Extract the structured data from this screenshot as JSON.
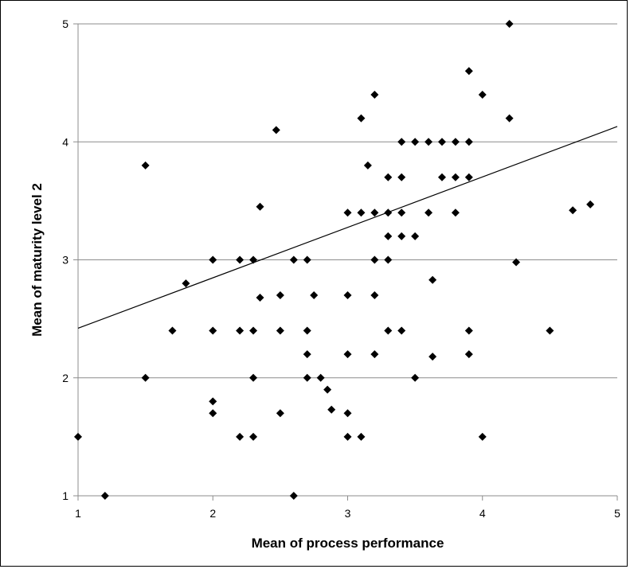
{
  "chart_data": {
    "type": "scatter",
    "xlabel": "Mean of process performance",
    "ylabel": "Mean of maturity level 2",
    "xlim": [
      1,
      5
    ],
    "ylim": [
      1,
      5
    ],
    "xticks": [
      "1",
      "2",
      "3",
      "4",
      "5"
    ],
    "yticks": [
      "1",
      "2",
      "3",
      "4",
      "5"
    ],
    "grid": "horizontal",
    "legend": "none",
    "marker": "diamond",
    "marker_color": "#000000",
    "trendline": {
      "x": [
        1,
        5
      ],
      "y": [
        2.42,
        4.13
      ]
    },
    "points": [
      {
        "x": 1.0,
        "y": 1.5
      },
      {
        "x": 1.2,
        "y": 1.0
      },
      {
        "x": 1.5,
        "y": 3.8
      },
      {
        "x": 1.5,
        "y": 2.0
      },
      {
        "x": 1.7,
        "y": 2.4
      },
      {
        "x": 1.8,
        "y": 2.8
      },
      {
        "x": 2.0,
        "y": 3.0
      },
      {
        "x": 2.0,
        "y": 2.4
      },
      {
        "x": 2.0,
        "y": 1.8
      },
      {
        "x": 2.0,
        "y": 1.7
      },
      {
        "x": 2.2,
        "y": 3.0
      },
      {
        "x": 2.2,
        "y": 2.4
      },
      {
        "x": 2.2,
        "y": 1.5
      },
      {
        "x": 2.3,
        "y": 3.0
      },
      {
        "x": 2.3,
        "y": 2.4
      },
      {
        "x": 2.3,
        "y": 2.0
      },
      {
        "x": 2.3,
        "y": 1.5
      },
      {
        "x": 2.35,
        "y": 3.45
      },
      {
        "x": 2.35,
        "y": 2.68
      },
      {
        "x": 2.47,
        "y": 4.1
      },
      {
        "x": 2.5,
        "y": 2.7
      },
      {
        "x": 2.5,
        "y": 2.4
      },
      {
        "x": 2.5,
        "y": 1.7
      },
      {
        "x": 2.6,
        "y": 3.0
      },
      {
        "x": 2.6,
        "y": 1.0
      },
      {
        "x": 2.7,
        "y": 3.0
      },
      {
        "x": 2.7,
        "y": 2.4
      },
      {
        "x": 2.7,
        "y": 2.2
      },
      {
        "x": 2.7,
        "y": 2.0
      },
      {
        "x": 2.75,
        "y": 2.7
      },
      {
        "x": 2.8,
        "y": 2.0
      },
      {
        "x": 2.85,
        "y": 1.9
      },
      {
        "x": 2.88,
        "y": 1.73
      },
      {
        "x": 3.0,
        "y": 3.4
      },
      {
        "x": 3.0,
        "y": 2.7
      },
      {
        "x": 3.0,
        "y": 2.2
      },
      {
        "x": 3.0,
        "y": 1.7
      },
      {
        "x": 3.0,
        "y": 1.5
      },
      {
        "x": 3.1,
        "y": 4.2
      },
      {
        "x": 3.1,
        "y": 3.4
      },
      {
        "x": 3.1,
        "y": 1.5
      },
      {
        "x": 3.15,
        "y": 3.8
      },
      {
        "x": 3.2,
        "y": 4.4
      },
      {
        "x": 3.2,
        "y": 3.4
      },
      {
        "x": 3.2,
        "y": 3.0
      },
      {
        "x": 3.2,
        "y": 2.7
      },
      {
        "x": 3.2,
        "y": 2.2
      },
      {
        "x": 3.3,
        "y": 3.7
      },
      {
        "x": 3.3,
        "y": 3.4
      },
      {
        "x": 3.3,
        "y": 3.2
      },
      {
        "x": 3.3,
        "y": 3.0
      },
      {
        "x": 3.3,
        "y": 2.4
      },
      {
        "x": 3.4,
        "y": 4.0
      },
      {
        "x": 3.4,
        "y": 3.7
      },
      {
        "x": 3.4,
        "y": 3.4
      },
      {
        "x": 3.4,
        "y": 3.2
      },
      {
        "x": 3.4,
        "y": 2.4
      },
      {
        "x": 3.5,
        "y": 4.0
      },
      {
        "x": 3.5,
        "y": 3.2
      },
      {
        "x": 3.5,
        "y": 2.0
      },
      {
        "x": 3.6,
        "y": 4.0
      },
      {
        "x": 3.6,
        "y": 3.4
      },
      {
        "x": 3.63,
        "y": 2.83
      },
      {
        "x": 3.63,
        "y": 2.18
      },
      {
        "x": 3.7,
        "y": 4.0
      },
      {
        "x": 3.7,
        "y": 3.7
      },
      {
        "x": 3.8,
        "y": 4.0
      },
      {
        "x": 3.8,
        "y": 3.7
      },
      {
        "x": 3.8,
        "y": 3.4
      },
      {
        "x": 3.9,
        "y": 4.6
      },
      {
        "x": 3.9,
        "y": 4.0
      },
      {
        "x": 3.9,
        "y": 3.7
      },
      {
        "x": 3.9,
        "y": 2.4
      },
      {
        "x": 3.9,
        "y": 2.2
      },
      {
        "x": 4.0,
        "y": 4.4
      },
      {
        "x": 4.0,
        "y": 1.5
      },
      {
        "x": 4.2,
        "y": 5.0
      },
      {
        "x": 4.2,
        "y": 4.2
      },
      {
        "x": 4.25,
        "y": 2.98
      },
      {
        "x": 4.5,
        "y": 2.4
      },
      {
        "x": 4.67,
        "y": 3.42
      },
      {
        "x": 4.8,
        "y": 3.47
      }
    ]
  }
}
